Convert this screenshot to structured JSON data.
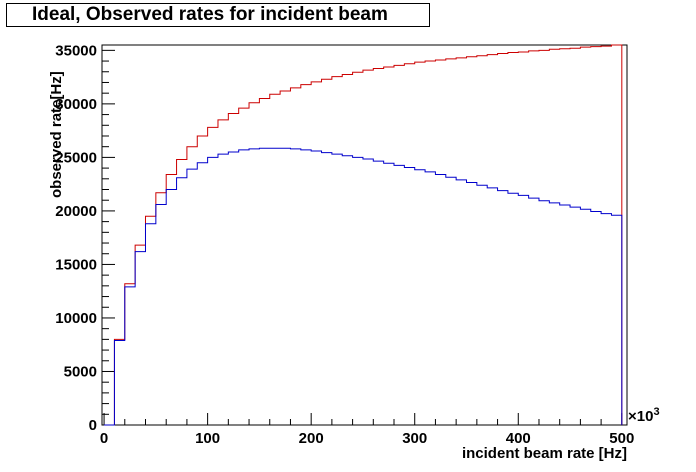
{
  "chart_data": {
    "type": "line",
    "title": "Ideal, Observed rates for incident beam",
    "xlabel": "incident beam rate [Hz]",
    "ylabel": "observed rate[Hz]",
    "x_exponent_label": "×10",
    "x_exponent_power": "3",
    "xlim": [
      -2,
      505
    ],
    "ylim": [
      0,
      35500
    ],
    "x_ticks": [
      0,
      100,
      200,
      300,
      400,
      500
    ],
    "x_tick_labels": [
      "0",
      "100",
      "200",
      "300",
      "400",
      "500"
    ],
    "y_ticks": [
      0,
      5000,
      10000,
      15000,
      20000,
      25000,
      30000,
      35000
    ],
    "y_tick_labels": [
      "0",
      "5000",
      "10000",
      "15000",
      "20000",
      "25000",
      "30000",
      "35000"
    ],
    "bin_width": 10,
    "x": [
      0,
      10,
      20,
      30,
      40,
      50,
      60,
      70,
      80,
      90,
      100,
      110,
      120,
      130,
      140,
      150,
      160,
      170,
      180,
      190,
      200,
      210,
      220,
      230,
      240,
      250,
      260,
      270,
      280,
      290,
      300,
      310,
      320,
      330,
      340,
      350,
      360,
      370,
      380,
      390,
      400,
      410,
      420,
      430,
      440,
      450,
      460,
      470,
      480,
      490
    ],
    "series": [
      {
        "color": "#cc0000",
        "values": [
          0,
          8000,
          13200,
          16800,
          19500,
          21700,
          23400,
          24800,
          26000,
          27000,
          27800,
          28500,
          29100,
          29600,
          30100,
          30500,
          30900,
          31200,
          31500,
          31800,
          32050,
          32300,
          32550,
          32750,
          32950,
          33150,
          33300,
          33450,
          33600,
          33750,
          33900,
          34000,
          34100,
          34200,
          34300,
          34400,
          34500,
          34600,
          34700,
          34800,
          34850,
          34950,
          35000,
          35100,
          35150,
          35200,
          35300,
          35350,
          35400,
          35500
        ]
      },
      {
        "color": "#0000cc",
        "values": [
          0,
          7900,
          12900,
          16200,
          18800,
          20600,
          22000,
          23100,
          23900,
          24500,
          25000,
          25300,
          25500,
          25700,
          25800,
          25850,
          25850,
          25850,
          25800,
          25700,
          25600,
          25450,
          25300,
          25150,
          25000,
          24850,
          24650,
          24450,
          24250,
          24050,
          23850,
          23650,
          23400,
          23150,
          22900,
          22650,
          22400,
          22150,
          21900,
          21650,
          21450,
          21200,
          20950,
          20750,
          20550,
          20350,
          20150,
          19950,
          19750,
          19600
        ]
      }
    ]
  }
}
